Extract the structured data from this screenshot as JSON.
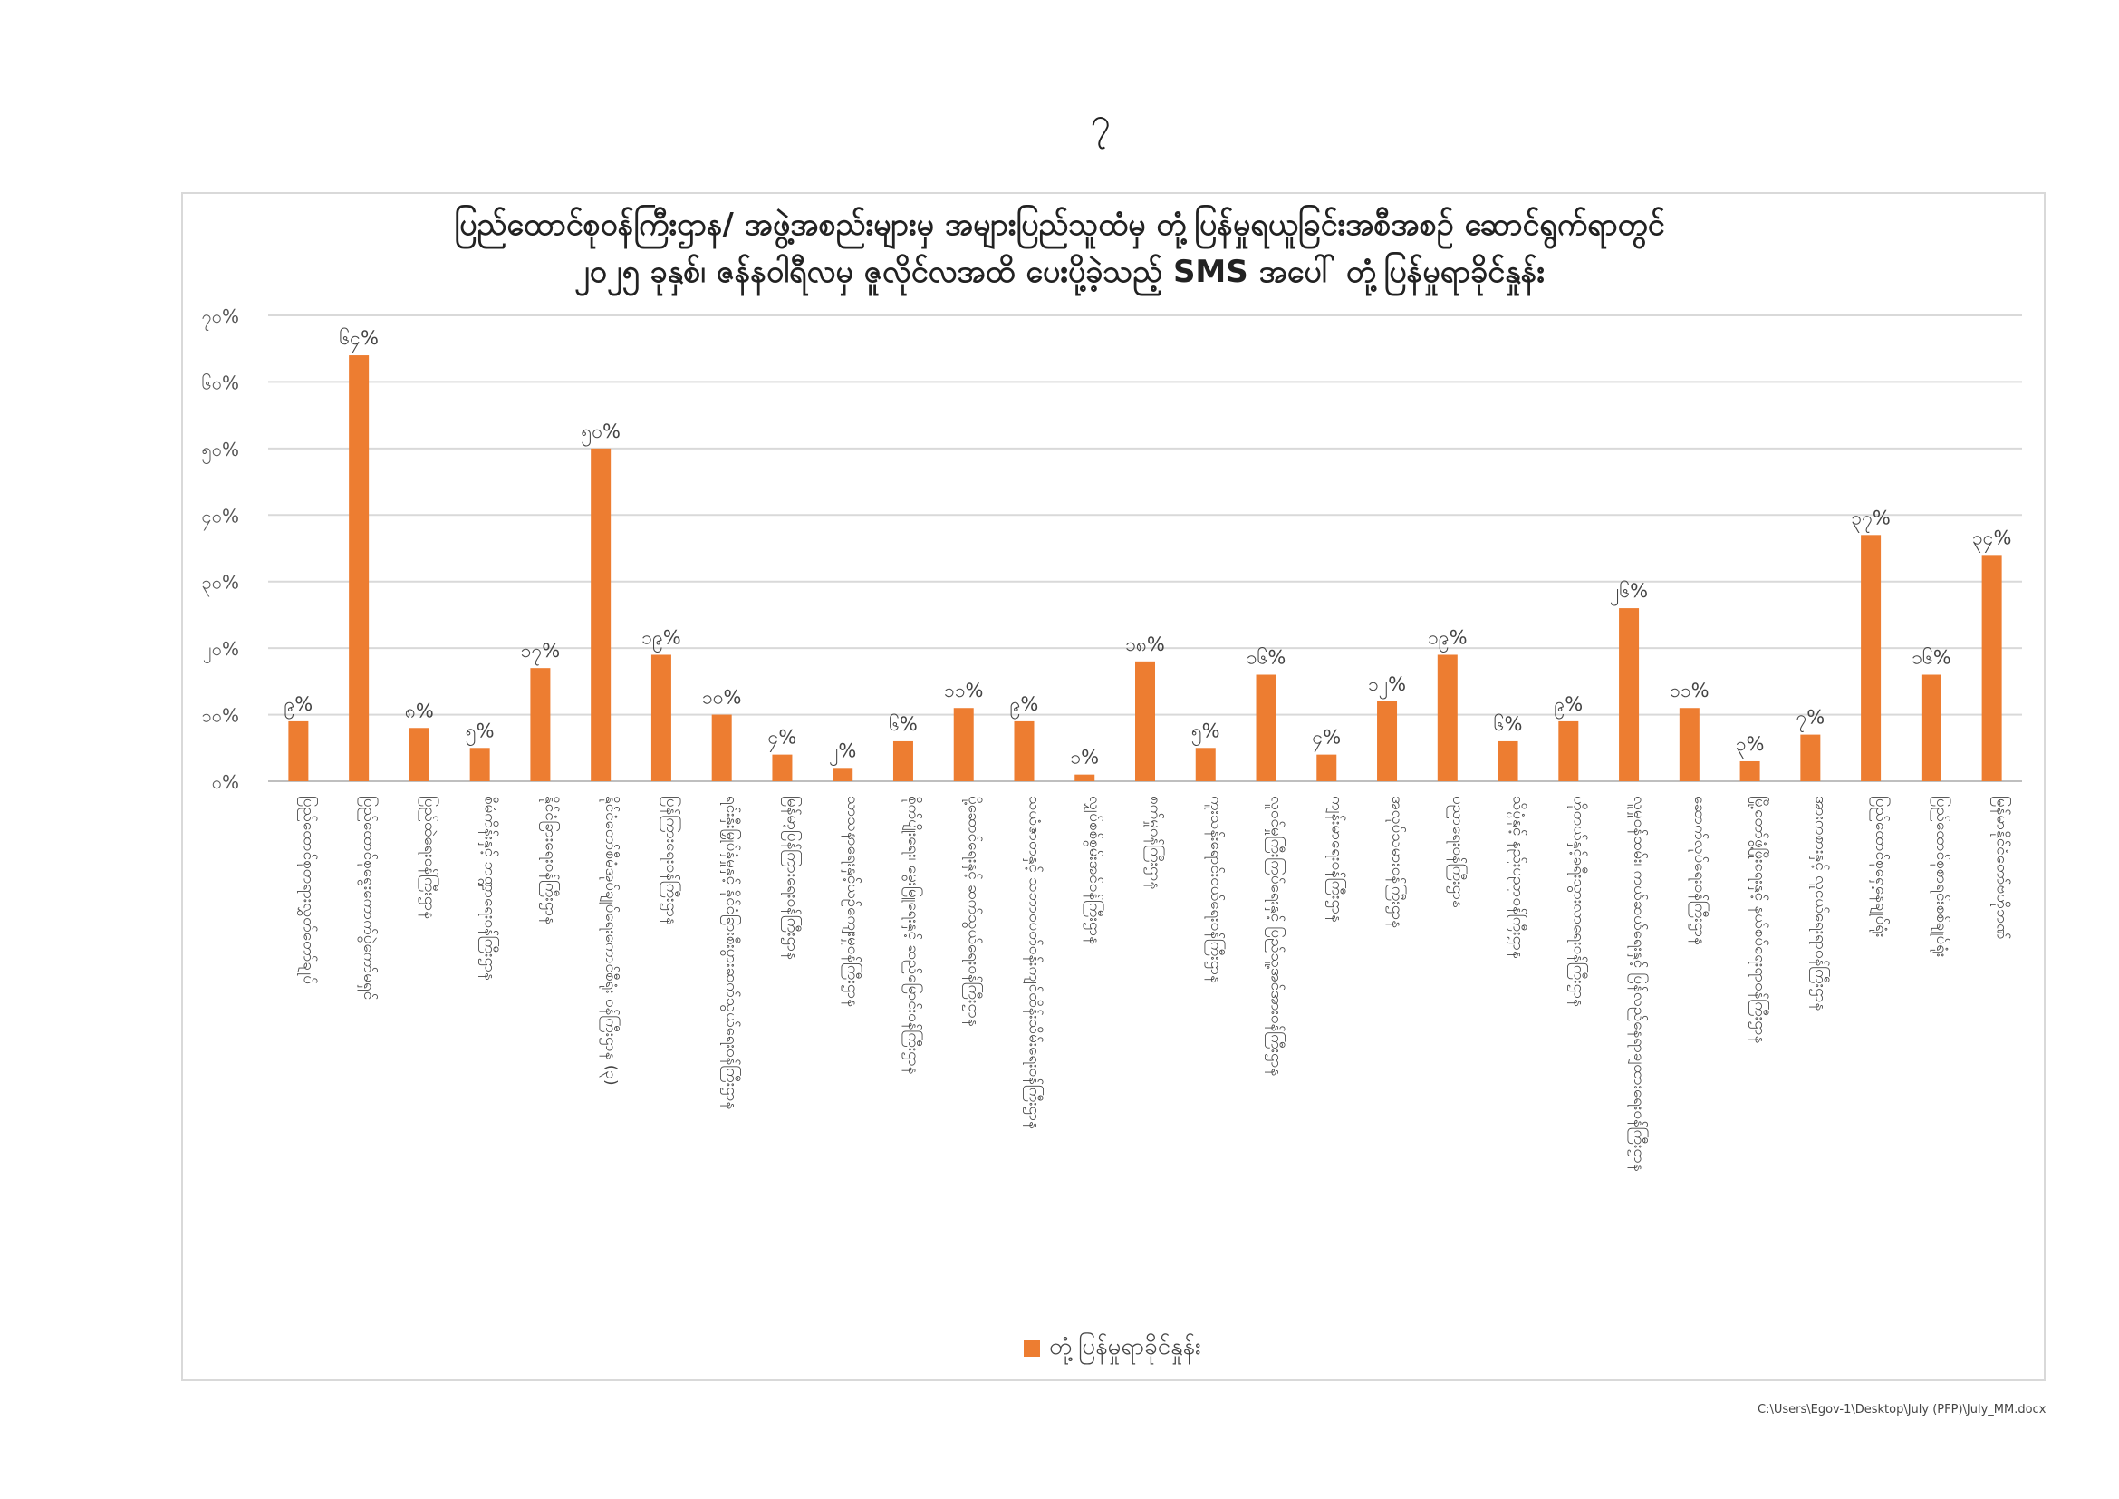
{
  "page_number": "၇",
  "footer_path": "C:\\Users\\Egov-1\\Desktop\\July (PFP)\\July_MM.docx",
  "chart_data": {
    "type": "bar",
    "title_lines": [
      "ပြည်ထောင်စုဝန်ကြီးဌာန/ အဖွဲ့အစည်းများမှ အများပြည်သူထံမှ တုံ့ပြန်မှုရယူခြင်းအစီအစဉ် ဆောင်ရွက်ရာတွင်",
      "၂၀၂၅ ခုနှစ်၊ ဇန်နဝါရီလမှ ဇူလိုင်လအထိ ပေးပို့ခဲ့သည့် SMS အပေါ် တုံ့ပြန်မှုရာခိုင်နှုန်း"
    ],
    "categories": [
      "ပြည်ထောင်စုတရားလွှတ်တော်ချုပ်",
      "ပြည်ထောင်စုရွေးကောက်ပွဲကော်မရှင်",
      "ပြည်ထဲရေးဝန်ကြီးဌာန",
      "စီမံကိန်းနှင့် ဘဏ္ဍာရေးဝန်ကြီးဌာန",
      "နိုင်ငံခြားရေးဝန်ကြီးဌာန",
      "နိုင်ငံတော်စီမံအုပ်ချုပ်ရေးကောင်စီရုံး ဝန်ကြီးဌာန (၃)",
      "ပြန်ကြားရေးဝန်ကြီးဌာန",
      "ရင်းနှီးမြှုပ်နှံမှုနှင့် နိုင်ငံခြားစီးပွားဆက်သွယ်ရေးဝန်ကြီးဌာန",
      "မြန်မာ့ပြန်ကြားရေးဝန်ကြီးဌာန",
      "သာသနာရေးနှင့်ယဉ်ကျေးမှုဝန်ကြီးဌာန",
      "စိုက်ပျိုးရေး၊ မွေးမြူရေးနှင့် ဆည်မြောင်းဝန်ကြီးဌာန",
      "ပို့ဆောင်ရေးနှင့် ဆက်သွယ်ရေးဝန်ကြီးဌာန",
      "သယံဇာတနှင့် သဘာဝပတ်ဝန်းကျင်ထိန်းသိမ်းရေးဝန်ကြီးဌာန",
      "လျှပ်စစ်စွမ်းအင်ဝန်ကြီးဌာန",
      "စက်မှုဝန်ကြီးဌာန",
      "ကူးသန်းရောင်းဝယ်ရေးဝန်ကြီးဌာန",
      "လူဝင်မှုကြီးကြပ်ရေးနှင့် ပြည်သူ့အင်အားဝန်ကြီးဌာန",
      "ကျန်းမာရေးဝန်ကြီးဌာန",
      "အလုပ်သမားဝန်ကြီးဌာန",
      "ပညာရေးဝန်ကြီးဌာန",
      "သိပ္ပံနှင့် နည်းပညာဝန်ကြီးဌာန",
      "ဟိုတယ်နှင့်ခရီးသွားလာရေးဝန်ကြီးဌာန",
      "လူမှုဝန်ထမ်း၊ ကယ်ဆယ်ရေးနှင့် ပြန်လည်နေရာချထားရေးဝန်ကြီးဌာန",
      "ဆောက်လုပ်ရေးဝန်ကြီးဌာန",
      "မြို့တော်ဖွံ့ဖြိုးရေးနှင့် နယ်စပ်ရေးရာဝန်ကြီးဌာန",
      "အားကစားနှင့် လူငယ်ရေးရာဝန်ကြီးဌာန",
      "ပြည်ထောင်စုရှေ့နေချုပ်ရုံး",
      "ပြည်ထောင်စုစာရင်းစစ်ချုပ်ရုံး",
      "မြန်မာနိုင်ငံတော်ဗဟိုဘဏ်"
    ],
    "series": [
      {
        "name": "တုံ့ပြန်မှုရာခိုင်နှုန်း",
        "color": "#ED7D31",
        "values": [
          9,
          64,
          8,
          5,
          17,
          50,
          19,
          10,
          4,
          2,
          6,
          11,
          9,
          1,
          18,
          5,
          16,
          4,
          12,
          19,
          6,
          9,
          26,
          11,
          3,
          7,
          37,
          16,
          34
        ]
      }
    ],
    "data_labels": [
      "၉%",
      "၆၄%",
      "၈%",
      "၅%",
      "၁၇%",
      "၅၀%",
      "၁၉%",
      "၁၀%",
      "၄%",
      "၂%",
      "၆%",
      "၁၁%",
      "၉%",
      "၁%",
      "၁၈%",
      "၅%",
      "၁၆%",
      "၄%",
      "၁၂%",
      "၁၉%",
      "၆%",
      "၉%",
      "၂၆%",
      "၁၁%",
      "၃%",
      "၇%",
      "၃၇%",
      "၁၆%",
      "၃၄%"
    ],
    "y_ticks": [
      "၀%",
      "၁၀%",
      "၂၀%",
      "၃၀%",
      "၄၀%",
      "၅၀%",
      "၆၀%",
      "၇၀%"
    ],
    "ylim": [
      0,
      70
    ],
    "grid": true,
    "legend_position": "bottom"
  }
}
